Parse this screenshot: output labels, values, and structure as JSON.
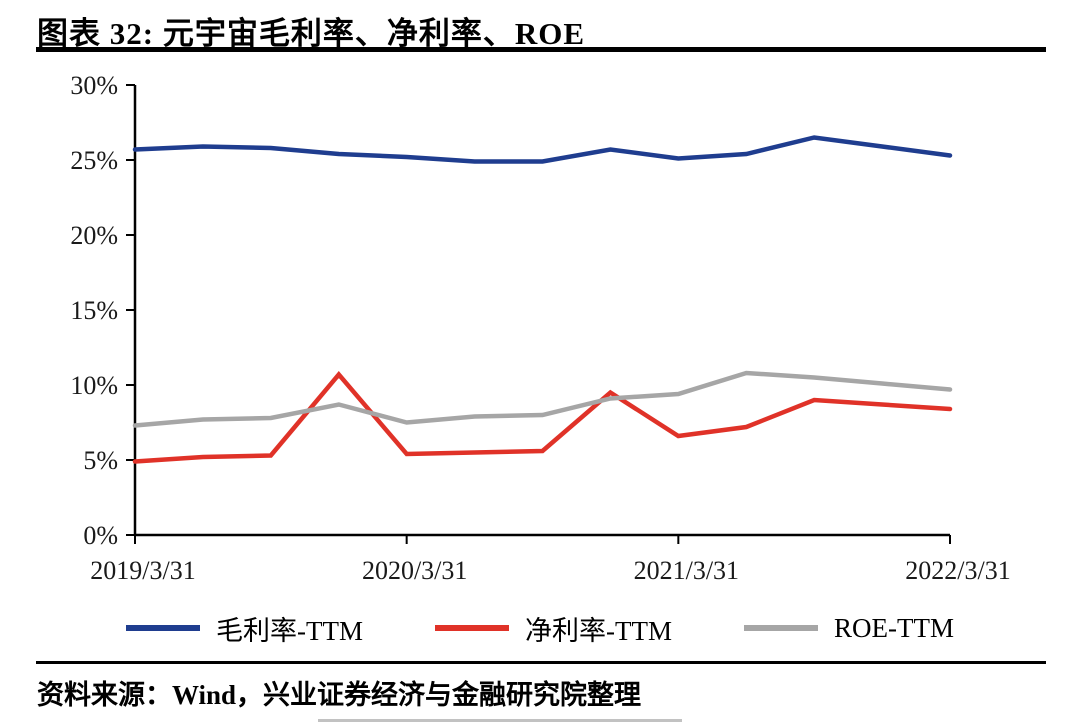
{
  "page": {
    "title": "图表 32: 元宇宙毛利率、净利率、ROE",
    "source": "资料来源：Wind，兴业证券经济与金融研究院整理"
  },
  "colors": {
    "gross_margin": "#1F3D8F",
    "net_margin": "#E03228",
    "roe": "#A6A6A6",
    "axis": "#000000",
    "rule": "#000000"
  },
  "chart_data": {
    "type": "line",
    "title": "元宇宙毛利率、净利率、ROE",
    "x": [
      "2019/3/31",
      "2019/6/30",
      "2019/9/30",
      "2019/12/31",
      "2020/3/31",
      "2020/6/30",
      "2020/9/30",
      "2020/12/31",
      "2021/3/31",
      "2021/6/30",
      "2021/9/30",
      "2021/12/31",
      "2022/3/31"
    ],
    "x_tick_labels": [
      "2019/3/31",
      "2020/3/31",
      "2021/3/31",
      "2022/3/31"
    ],
    "x_tick_indices": [
      0,
      4,
      8,
      12
    ],
    "ylim": [
      0,
      30
    ],
    "ytick_step": 5,
    "ytick_labels": [
      "0%",
      "5%",
      "10%",
      "15%",
      "20%",
      "25%",
      "30%"
    ],
    "grid": false,
    "legend_position": "bottom",
    "series": [
      {
        "name": "毛利率-TTM",
        "color": "#1F3D8F",
        "values": [
          25.7,
          25.9,
          25.8,
          25.4,
          25.2,
          24.9,
          24.9,
          25.7,
          25.1,
          25.4,
          26.5,
          25.9,
          25.3
        ]
      },
      {
        "name": "净利率-TTM",
        "color": "#E03228",
        "values": [
          4.9,
          5.2,
          5.3,
          10.7,
          5.4,
          5.5,
          5.6,
          9.5,
          6.6,
          7.2,
          9.0,
          8.7,
          8.4
        ]
      },
      {
        "name": "ROE-TTM",
        "color": "#A6A6A6",
        "values": [
          7.3,
          7.7,
          7.8,
          8.7,
          7.5,
          7.9,
          8.0,
          9.1,
          9.4,
          10.8,
          10.5,
          10.1,
          9.7
        ]
      }
    ]
  }
}
